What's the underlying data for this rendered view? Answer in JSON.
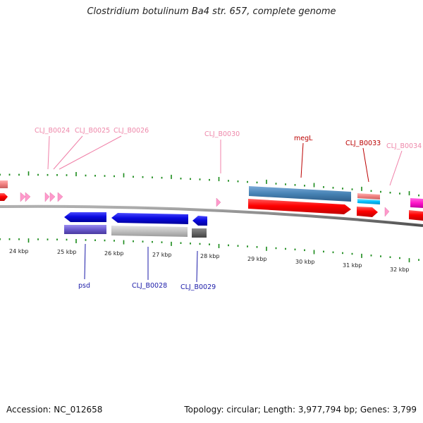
{
  "title": "Clostridium botulinum Ba4 str. 657, complete genome",
  "footer": {
    "accession": "Accession: NC_012658",
    "summary": "Topology: circular; Length: 3,977,794 bp; Genes: 3,799"
  },
  "scale": {
    "unit": "kbp",
    "labels": [
      "24 kbp",
      "25 kbp",
      "26 kbp",
      "27 kbp",
      "28 kbp",
      "29 kbp",
      "30 kbp",
      "31 kbp",
      "32 kbp"
    ]
  },
  "gene_labels": {
    "top": [
      "CLJ_B0024",
      "CLJ_B0025",
      "CLJ_B0026",
      "CLJ_B0030",
      "megL",
      "CLJ_B0033",
      "CLJ_B0034"
    ],
    "bottom": [
      "psd",
      "CLJ_B0028",
      "CLJ_B0029"
    ]
  },
  "colors": {
    "forward_gene": "#ff0000",
    "reverse_gene": "#0000dd",
    "light_label": "#ee88aa",
    "dark_red_label": "#bb0000",
    "blue_label": "#1a1aa8",
    "tick": "#1a8a1a",
    "backbone": "#808080"
  }
}
